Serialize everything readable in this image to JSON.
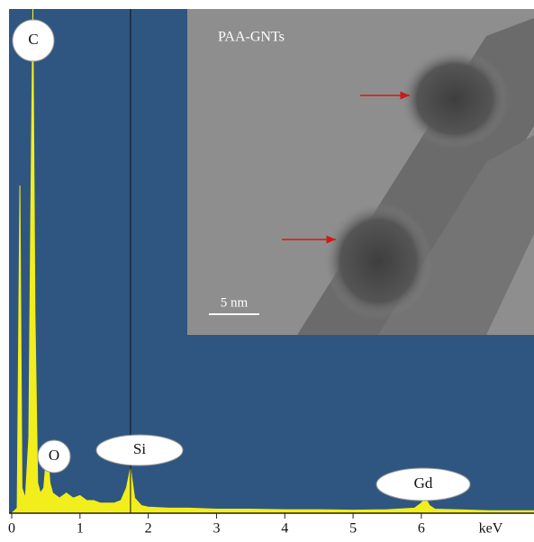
{
  "chart_data": {
    "type": "area",
    "x": [
      0,
      0.08,
      0.12,
      0.15,
      0.2,
      0.25,
      0.28,
      0.31,
      0.34,
      0.38,
      0.42,
      0.47,
      0.52,
      0.56,
      0.6,
      0.7,
      0.8,
      0.9,
      1.0,
      1.1,
      1.2,
      1.3,
      1.4,
      1.5,
      1.6,
      1.68,
      1.74,
      1.8,
      1.9,
      2.0,
      2.3,
      2.6,
      3.0,
      3.5,
      4.0,
      4.5,
      5.0,
      5.5,
      5.9,
      6.0,
      6.06,
      6.12,
      6.2,
      6.5,
      7.0,
      7.65
    ],
    "values": [
      0,
      1,
      65,
      5,
      3,
      15,
      60,
      100,
      40,
      6,
      4,
      5,
      13,
      6,
      4,
      3,
      4,
      3,
      3.5,
      2.5,
      2.5,
      2,
      2,
      2,
      2.5,
      5,
      9,
      3,
      1.5,
      1.2,
      1,
      1,
      0.8,
      0.8,
      0.7,
      0.7,
      0.6,
      0.7,
      1,
      2,
      3,
      1.5,
      0.8,
      0.7,
      0.5,
      0.5
    ],
    "color": "#f2ee1c",
    "background": "#2f5680",
    "xlim": [
      0,
      7.65
    ],
    "ylim": [
      0,
      100
    ],
    "xticks": [
      0,
      1,
      2,
      3,
      4,
      5,
      6
    ],
    "xlabel": "keV",
    "annotations": [
      {
        "text": "C",
        "x": 0.31
      },
      {
        "text": "O",
        "x": 0.52
      },
      {
        "text": "Si",
        "x": 1.74
      },
      {
        "text": "Gd",
        "x": 6.06
      }
    ],
    "inset": {
      "title": "PAA-GNTs",
      "scale_bar": "5 nm"
    }
  }
}
